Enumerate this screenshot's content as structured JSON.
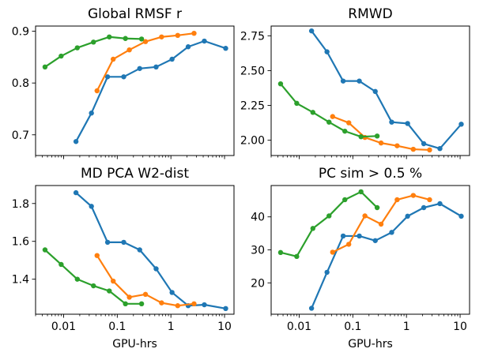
{
  "chart_data": [
    {
      "type": "line",
      "title": "Global RMSF r",
      "xscale": "log",
      "xlim": [
        0.003,
        15
      ],
      "ylim": [
        0.66,
        0.91
      ],
      "yticks": [
        0.7,
        0.8,
        0.9
      ],
      "ytick_labels": [
        "0.7",
        "0.8",
        "0.9"
      ],
      "xticks": [],
      "xtick_labels": [],
      "xlabel": "",
      "series": [
        {
          "color": "#1f77b4",
          "points": [
            [
              0.017,
              0.687
            ],
            [
              0.033,
              0.742
            ],
            [
              0.066,
              0.812
            ],
            [
              0.132,
              0.812
            ],
            [
              0.262,
              0.828
            ],
            [
              0.53,
              0.831
            ],
            [
              1.05,
              0.846
            ],
            [
              2.1,
              0.87
            ],
            [
              4.2,
              0.881
            ],
            [
              10.5,
              0.867
            ]
          ]
        },
        {
          "color": "#ff7f0e",
          "points": [
            [
              0.042,
              0.785
            ],
            [
              0.084,
              0.846
            ],
            [
              0.168,
              0.864
            ],
            [
              0.336,
              0.88
            ],
            [
              0.67,
              0.889
            ],
            [
              1.34,
              0.892
            ],
            [
              2.7,
              0.896
            ]
          ]
        },
        {
          "color": "#2ca02c",
          "points": [
            [
              0.0045,
              0.831
            ],
            [
              0.009,
              0.852
            ],
            [
              0.018,
              0.868
            ],
            [
              0.036,
              0.879
            ],
            [
              0.071,
              0.889
            ],
            [
              0.142,
              0.886
            ],
            [
              0.284,
              0.885
            ]
          ]
        }
      ]
    },
    {
      "type": "line",
      "title": "RMWD",
      "xscale": "log",
      "xlim": [
        0.003,
        15
      ],
      "ylim": [
        1.89,
        2.82
      ],
      "yticks": [
        2.0,
        2.25,
        2.5,
        2.75
      ],
      "ytick_labels": [
        "2.00",
        "2.25",
        "2.50",
        "2.75"
      ],
      "xticks": [],
      "xtick_labels": [],
      "xlabel": "",
      "series": [
        {
          "color": "#1f77b4",
          "points": [
            [
              0.017,
              2.785
            ],
            [
              0.033,
              2.635
            ],
            [
              0.066,
              2.425
            ],
            [
              0.132,
              2.425
            ],
            [
              0.262,
              2.35
            ],
            [
              0.53,
              2.13
            ],
            [
              1.05,
              2.12
            ],
            [
              2.1,
              1.975
            ],
            [
              4.2,
              1.94
            ],
            [
              10.5,
              2.115
            ]
          ]
        },
        {
          "color": "#ff7f0e",
          "points": [
            [
              0.042,
              2.17
            ],
            [
              0.084,
              2.125
            ],
            [
              0.168,
              2.02
            ],
            [
              0.336,
              1.98
            ],
            [
              0.67,
              1.96
            ],
            [
              1.34,
              1.935
            ],
            [
              2.7,
              1.93
            ]
          ]
        },
        {
          "color": "#2ca02c",
          "points": [
            [
              0.0045,
              2.405
            ],
            [
              0.009,
              2.265
            ],
            [
              0.018,
              2.2
            ],
            [
              0.036,
              2.13
            ],
            [
              0.071,
              2.065
            ],
            [
              0.142,
              2.025
            ],
            [
              0.284,
              2.03
            ]
          ]
        }
      ]
    },
    {
      "type": "line",
      "title": "MD PCA W2-dist",
      "xscale": "log",
      "xlim": [
        0.003,
        15
      ],
      "ylim": [
        1.215,
        1.895
      ],
      "yticks": [
        1.4,
        1.6,
        1.8
      ],
      "ytick_labels": [
        "1.4",
        "1.6",
        "1.8"
      ],
      "xticks": [
        0.01,
        0.1,
        1,
        10
      ],
      "xtick_labels": [
        "0.01",
        "0.1",
        "1",
        "10"
      ],
      "xlabel": "GPU-hrs",
      "series": [
        {
          "color": "#1f77b4",
          "points": [
            [
              0.017,
              1.857
            ],
            [
              0.033,
              1.785
            ],
            [
              0.066,
              1.595
            ],
            [
              0.132,
              1.595
            ],
            [
              0.262,
              1.555
            ],
            [
              0.53,
              1.455
            ],
            [
              1.05,
              1.33
            ],
            [
              2.1,
              1.26
            ],
            [
              4.2,
              1.265
            ],
            [
              10.5,
              1.245
            ]
          ]
        },
        {
          "color": "#ff7f0e",
          "points": [
            [
              0.042,
              1.525
            ],
            [
              0.084,
              1.39
            ],
            [
              0.168,
              1.305
            ],
            [
              0.336,
              1.32
            ],
            [
              0.67,
              1.275
            ],
            [
              1.34,
              1.26
            ],
            [
              2.7,
              1.27
            ]
          ]
        },
        {
          "color": "#2ca02c",
          "points": [
            [
              0.0045,
              1.555
            ],
            [
              0.009,
              1.478
            ],
            [
              0.018,
              1.4
            ],
            [
              0.036,
              1.365
            ],
            [
              0.071,
              1.338
            ],
            [
              0.142,
              1.27
            ],
            [
              0.284,
              1.27
            ]
          ]
        }
      ]
    },
    {
      "type": "line",
      "title": "PC sim > 0.5 %",
      "xscale": "log",
      "xlim": [
        0.003,
        15
      ],
      "ylim": [
        10.5,
        49.5
      ],
      "yticks": [
        20,
        30,
        40
      ],
      "ytick_labels": [
        "20",
        "30",
        "40"
      ],
      "xticks": [
        0.01,
        0.1,
        1,
        10
      ],
      "xtick_labels": [
        "0.01",
        "0.1",
        "1",
        "10"
      ],
      "xlabel": "GPU-hrs",
      "series": [
        {
          "color": "#1f77b4",
          "points": [
            [
              0.017,
              12.3
            ],
            [
              0.033,
              23.2
            ],
            [
              0.066,
              34.2
            ],
            [
              0.132,
              34.2
            ],
            [
              0.262,
              32.8
            ],
            [
              0.53,
              35.3
            ],
            [
              1.05,
              40.2
            ],
            [
              2.1,
              42.8
            ],
            [
              4.2,
              44.0
            ],
            [
              10.5,
              40.2
            ]
          ]
        },
        {
          "color": "#ff7f0e",
          "points": [
            [
              0.042,
              29.3
            ],
            [
              0.084,
              31.7
            ],
            [
              0.168,
              40.3
            ],
            [
              0.336,
              37.8
            ],
            [
              0.67,
              45.2
            ],
            [
              1.34,
              46.5
            ],
            [
              2.7,
              45.2
            ]
          ]
        },
        {
          "color": "#2ca02c",
          "points": [
            [
              0.0045,
              29.2
            ],
            [
              0.009,
              28.0
            ],
            [
              0.018,
              36.5
            ],
            [
              0.036,
              40.3
            ],
            [
              0.071,
              45.2
            ],
            [
              0.142,
              47.6
            ],
            [
              0.284,
              42.8
            ]
          ]
        }
      ]
    }
  ]
}
